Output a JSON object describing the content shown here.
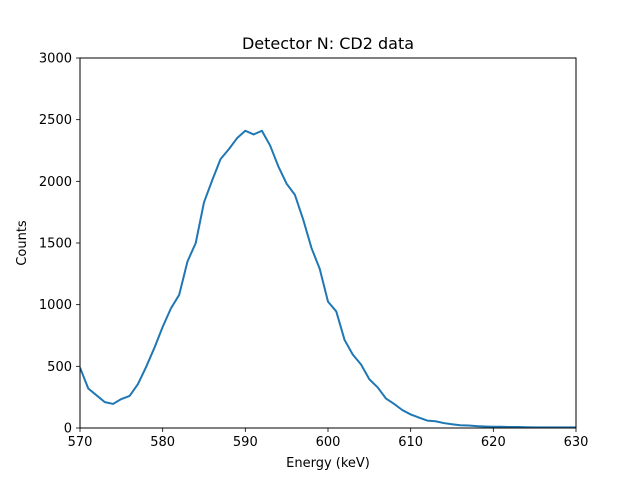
{
  "chart_data": {
    "type": "line",
    "title": "Detector N: CD2 data",
    "xlabel": "Energy (keV)",
    "ylabel": "Counts",
    "xlim": [
      570,
      630
    ],
    "ylim": [
      0,
      3000
    ],
    "xticks": [
      570,
      580,
      590,
      600,
      610,
      620,
      630
    ],
    "yticks": [
      0,
      500,
      1000,
      1500,
      2000,
      2500,
      3000
    ],
    "grid": false,
    "legend": "none",
    "series": [
      {
        "color": "#1f77b4",
        "x": [
          570,
          571,
          572,
          573,
          574,
          575,
          576,
          577,
          578,
          579,
          580,
          581,
          582,
          583,
          584,
          585,
          586,
          587,
          588,
          589,
          590,
          591,
          592,
          593,
          594,
          595,
          596,
          597,
          598,
          599,
          600,
          601,
          602,
          603,
          604,
          605,
          606,
          607,
          608,
          609,
          610,
          611,
          612,
          613,
          614,
          615,
          616,
          617,
          618,
          619,
          620,
          621,
          622,
          623,
          624,
          625,
          626,
          627,
          628,
          629,
          630
        ],
        "y": [
          490,
          320,
          265,
          210,
          195,
          235,
          260,
          355,
          495,
          650,
          820,
          970,
          1080,
          1350,
          1500,
          1830,
          2010,
          2180,
          2260,
          2350,
          2410,
          2380,
          2410,
          2290,
          2120,
          1980,
          1890,
          1690,
          1460,
          1290,
          1025,
          945,
          715,
          595,
          515,
          395,
          330,
          240,
          195,
          145,
          110,
          85,
          60,
          55,
          40,
          30,
          22,
          20,
          15,
          12,
          10,
          10,
          8,
          8,
          6,
          5,
          5,
          5,
          5,
          5,
          5
        ]
      }
    ]
  }
}
